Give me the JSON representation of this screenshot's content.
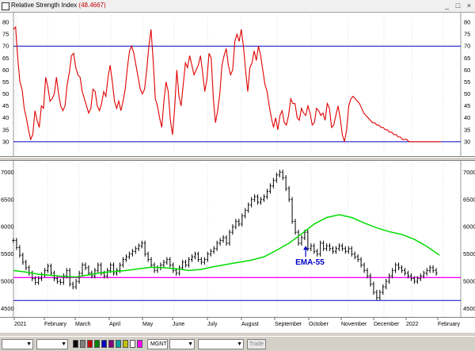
{
  "window": {
    "title": "Relative Strength Index",
    "title_value": "(48.4667)",
    "controls": "_ □ ×"
  },
  "colors": {
    "rsi_line": "#e00000",
    "level_line": "#0000c8",
    "ema_line": "#00dd00",
    "support_line": "#ff00ff",
    "candle": "#000000",
    "annotation": "#0000c8"
  },
  "icons": [
    "chart-app-icon",
    "minimize-icon",
    "maximize-icon",
    "close-icon",
    "up-arrow-icon"
  ],
  "chart_data": [
    {
      "type": "line",
      "series": [
        {
          "name": "Relative Strength Index",
          "x": [
            0,
            2,
            4,
            6,
            8,
            10,
            12,
            14,
            16,
            18,
            20,
            22,
            24,
            26,
            28,
            30,
            32,
            34,
            36,
            38,
            40,
            42,
            44,
            46,
            48,
            50,
            52,
            54,
            56,
            58,
            60,
            62,
            64,
            66,
            68,
            70,
            72,
            74,
            76,
            78,
            80,
            82,
            84,
            86,
            88,
            90,
            92,
            94,
            96,
            98,
            100,
            102,
            104,
            106,
            108,
            110,
            112,
            114,
            116,
            118,
            120,
            122,
            124,
            126,
            128,
            130,
            132,
            134,
            136,
            138,
            140,
            142,
            144,
            146,
            148,
            150,
            152,
            154,
            156,
            158,
            160,
            162,
            164,
            166,
            168,
            170,
            172,
            174,
            176,
            178,
            180,
            182,
            184,
            186,
            188,
            190,
            192,
            194,
            196,
            198,
            200,
            202,
            204,
            206,
            208,
            210,
            212,
            214,
            216,
            218,
            220,
            222,
            224,
            226,
            228,
            230,
            232,
            234,
            236,
            238,
            240,
            242,
            244,
            246,
            248,
            250,
            252,
            254,
            256,
            258,
            260,
            262,
            264,
            266,
            268,
            270,
            272,
            274,
            276,
            278,
            280,
            282,
            284,
            286,
            288,
            290,
            292,
            294,
            296,
            298,
            300,
            302,
            304,
            306,
            308,
            310,
            312,
            314,
            316,
            318,
            320,
            322,
            324,
            326,
            328,
            330,
            332,
            334,
            336,
            338,
            340,
            342,
            344,
            346,
            348,
            350,
            352,
            354,
            356,
            358,
            360,
            362,
            364,
            366,
            368,
            370,
            372,
            374,
            376,
            378,
            380,
            382,
            384,
            386,
            388,
            390,
            392,
            394,
            396,
            398
          ],
          "values": [
            77,
            78,
            65,
            55,
            52,
            44,
            40,
            35,
            31,
            33,
            43,
            39,
            36,
            45,
            44,
            57,
            53,
            47,
            48,
            50,
            57,
            50,
            45,
            43,
            45,
            54,
            59,
            66,
            67,
            61,
            58,
            57,
            51,
            48,
            45,
            42,
            44,
            52,
            51,
            45,
            43,
            46,
            51,
            49,
            57,
            62,
            55,
            47,
            44,
            47,
            43,
            47,
            52,
            61,
            68,
            70,
            67,
            62,
            57,
            52,
            50,
            52,
            60,
            70,
            77,
            64,
            48,
            45,
            40,
            36,
            47,
            55,
            51,
            39,
            33,
            44,
            60,
            49,
            45,
            54,
            63,
            61,
            66,
            62,
            58,
            60,
            62,
            66,
            59,
            51,
            56,
            67,
            65,
            48,
            38,
            43,
            50,
            62,
            66,
            69,
            62,
            58,
            60,
            72,
            75,
            72,
            77,
            70,
            60,
            51,
            61,
            63,
            68,
            64,
            70,
            66,
            60,
            54,
            51,
            45,
            40,
            36,
            40,
            35,
            41,
            43,
            38,
            37,
            41,
            48,
            46,
            46,
            40,
            39,
            44,
            42,
            41,
            45,
            42,
            37,
            38,
            44,
            43,
            41,
            42,
            39,
            46,
            44,
            36,
            37,
            41,
            45,
            40,
            33,
            30,
            35,
            45,
            48,
            49,
            48,
            47,
            46,
            44,
            42,
            41,
            40,
            39,
            38,
            38,
            37,
            37,
            36,
            36,
            35,
            35,
            34,
            34,
            33,
            33,
            32,
            32,
            31,
            31,
            31,
            30,
            30,
            30,
            30,
            30,
            30,
            30,
            30,
            30,
            30,
            30,
            30,
            30,
            30,
            30,
            30
          ]
        }
      ],
      "ylim": [
        25,
        83
      ],
      "yticks": [
        30,
        35,
        40,
        45,
        50,
        55,
        60,
        65,
        70,
        75,
        80
      ],
      "levels": [
        30,
        70
      ]
    },
    {
      "type": "line",
      "xlabels": [
        "2021",
        "February",
        "March",
        "April",
        "May",
        "June",
        "July",
        "August",
        "September",
        "October",
        "November",
        "December",
        "2022",
        "February"
      ],
      "ylim": [
        4450,
        7150
      ],
      "yticks": [
        4500,
        5000,
        5500,
        6000,
        6500,
        7000
      ],
      "support_level": 5070,
      "lower_level": 4650,
      "annotations": [
        {
          "text": "EMA-55",
          "x": 356,
          "y": 5390
        }
      ],
      "series": [
        {
          "name": "Price",
          "x": [
            0,
            4,
            8,
            12,
            16,
            20,
            24,
            28,
            32,
            36,
            40,
            44,
            48,
            52,
            56,
            60,
            64,
            68,
            72,
            76,
            80,
            84,
            88,
            92,
            96,
            100,
            104,
            108,
            112,
            116,
            120,
            124,
            128,
            132,
            136,
            140,
            144,
            148,
            152,
            156,
            160,
            164,
            168,
            172,
            176,
            180,
            184,
            188,
            192,
            196,
            200,
            204,
            208,
            212,
            216,
            220,
            224,
            228,
            232,
            236,
            240,
            244,
            248,
            252,
            256,
            260,
            264,
            268,
            272,
            276,
            280,
            284,
            288,
            292,
            296,
            300,
            304,
            308,
            312,
            316,
            320,
            324,
            328,
            332,
            336,
            340,
            344,
            348,
            352,
            356,
            360,
            364,
            368,
            372,
            376,
            380,
            384,
            388,
            392,
            396,
            400,
            404,
            408,
            412,
            416,
            420,
            424,
            428,
            432,
            436,
            440,
            444,
            448,
            452,
            456,
            460,
            464,
            468,
            472,
            476,
            480,
            484,
            488,
            492,
            496,
            500,
            504,
            508,
            512,
            516,
            520,
            524,
            528,
            532,
            536,
            540
          ],
          "values": [
            5750,
            5620,
            5480,
            5350,
            5250,
            5150,
            5050,
            4980,
            5050,
            5120,
            5200,
            5280,
            5150,
            5050,
            5000,
            4980,
            5100,
            5200,
            4950,
            4900,
            5000,
            5150,
            5300,
            5250,
            5150,
            5100,
            5200,
            5300,
            5150,
            5100,
            5200,
            5300,
            5150,
            5200,
            5300,
            5400,
            5450,
            5500,
            5550,
            5600,
            5650,
            5700,
            5500,
            5400,
            5300,
            5200,
            5250,
            5300,
            5350,
            5400,
            5300,
            5200,
            5150,
            5250,
            5350,
            5300,
            5400,
            5450,
            5500,
            5400,
            5350,
            5400,
            5500,
            5550,
            5600,
            5700,
            5750,
            5800,
            5700,
            5900,
            6000,
            6100,
            6050,
            6200,
            6300,
            6400,
            6500,
            6550,
            6450,
            6500,
            6550,
            6650,
            6750,
            6850,
            6950,
            7000,
            6900,
            6700,
            6500,
            6100,
            5900,
            5700,
            5800,
            5900,
            5600,
            5650,
            5550,
            5500,
            5700,
            5600,
            5650,
            5600,
            5550,
            5600,
            5650,
            5600,
            5550,
            5600,
            5500,
            5450,
            5400,
            5300,
            5200,
            5100,
            4950,
            4800,
            4700,
            4800,
            4900,
            5000,
            5100,
            5200,
            5300,
            5250,
            5200,
            5150,
            5100,
            5050,
            5000,
            5050,
            5100,
            5150,
            5200,
            5250,
            5200,
            5150
          ]
        },
        {
          "name": "EMA-55",
          "x": [
            0,
            16,
            32,
            48,
            64,
            80,
            96,
            112,
            128,
            144,
            160,
            176,
            192,
            208,
            224,
            240,
            256,
            272,
            288,
            304,
            320,
            336,
            352,
            368,
            384,
            400,
            416,
            432,
            448,
            464,
            480,
            496,
            512,
            528,
            544
          ],
          "values": [
            5200,
            5170,
            5130,
            5110,
            5090,
            5080,
            5120,
            5160,
            5180,
            5200,
            5230,
            5260,
            5250,
            5230,
            5200,
            5220,
            5270,
            5310,
            5350,
            5390,
            5450,
            5570,
            5700,
            5870,
            6050,
            6170,
            6220,
            6170,
            6070,
            5980,
            5910,
            5860,
            5770,
            5640,
            5480
          ]
        }
      ]
    }
  ],
  "toolbar": {
    "combo_1": "",
    "combo_2": "",
    "symbol": "MGNT",
    "combo_4": "",
    "combo_5": "",
    "trade_button": "Trade",
    "swatches": [
      "#000000",
      "#808080",
      "#c00000",
      "#008000",
      "#0000c0",
      "#800080",
      "#00a0a0",
      "#c0c000",
      "#ffffff",
      "#ff00ff"
    ]
  }
}
